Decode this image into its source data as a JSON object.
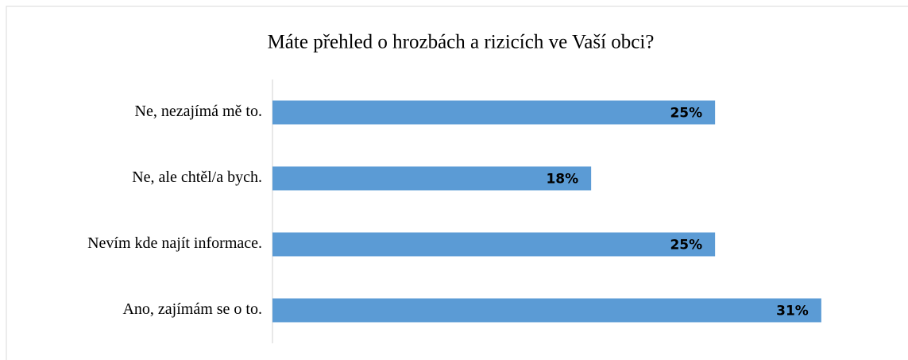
{
  "chart_data": {
    "type": "barh",
    "title": "Máte přehled o hrozbách a rizicích ve Vaší obci?",
    "categories": [
      "Ne, nezajímá mě to.",
      "Ne, ale chtěl/a bych.",
      "Nevím kde najít informace.",
      "Ano, zajímám se o to."
    ],
    "values": [
      25,
      18,
      25,
      31
    ],
    "value_labels": [
      "25%",
      "18%",
      "25%",
      "31%"
    ],
    "color": "#5b9bd5",
    "xlim": [
      0,
      35
    ]
  }
}
